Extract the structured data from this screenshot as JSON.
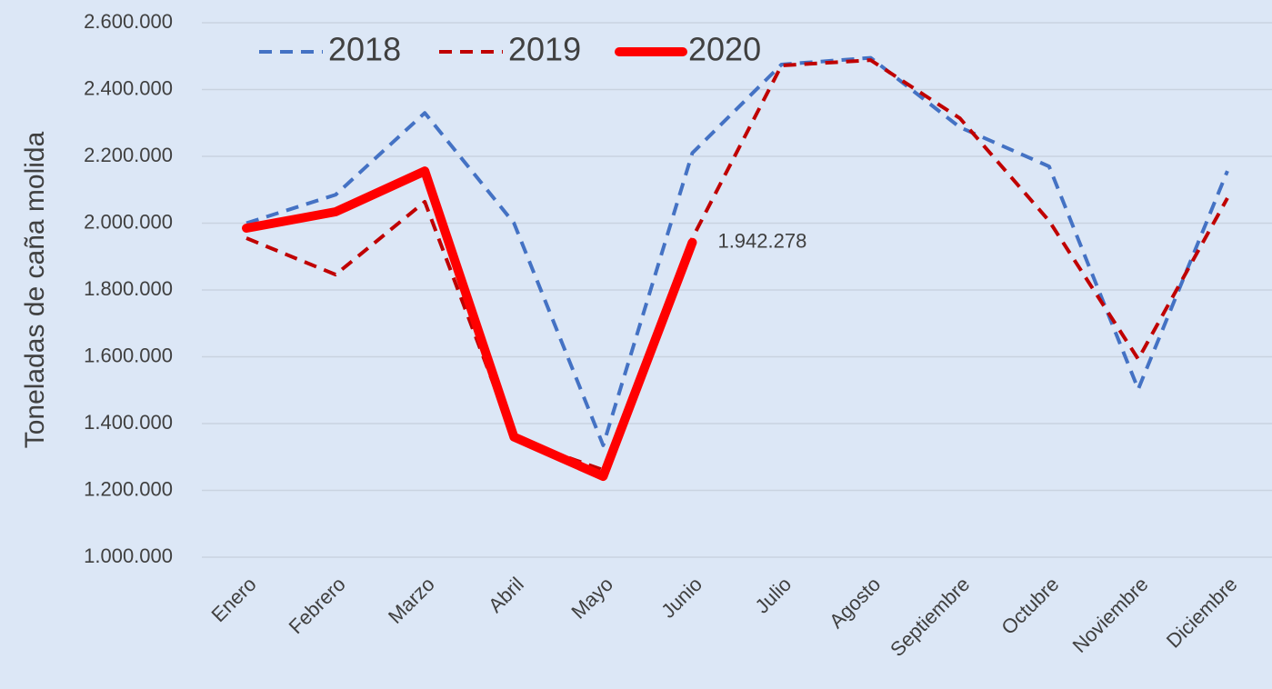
{
  "chart_data": {
    "type": "line",
    "y_axis_label": "Toneladas de caña molida",
    "categories": [
      "Enero",
      "Febrero",
      "Marzo",
      "Abril",
      "Mayo",
      "Junio",
      "Julio",
      "Agosto",
      "Septiembre",
      "Octubre",
      "Noviembre",
      "Diciembre"
    ],
    "series": [
      {
        "name": "2018",
        "color": "#4472c4",
        "dash": true,
        "width": 4,
        "values": [
          2000000,
          2085000,
          2330000,
          2000000,
          1335000,
          2210000,
          2475000,
          2495000,
          2287000,
          2170000,
          1503000,
          2156000
        ]
      },
      {
        "name": "2019",
        "color": "#c00000",
        "dash": true,
        "width": 4,
        "values": [
          1955000,
          1846000,
          2064000,
          1356000,
          1261000,
          1955000,
          2472000,
          2488000,
          2314000,
          2007000,
          1593000,
          2075000
        ]
      },
      {
        "name": "2020",
        "color": "#ff0000",
        "dash": false,
        "width": 10,
        "values": [
          1985000,
          2034000,
          2156000,
          1360000,
          1242000,
          1942278,
          null,
          null,
          null,
          null,
          null,
          null
        ],
        "value_labels": [
          null,
          null,
          null,
          null,
          null,
          "1.942.278",
          null,
          null,
          null,
          null,
          null,
          null
        ]
      }
    ],
    "ylim": [
      1000000,
      2600000
    ],
    "yticks": [
      {
        "value": 1000000,
        "label": "1.000.000"
      },
      {
        "value": 1200000,
        "label": "1.200.000"
      },
      {
        "value": 1400000,
        "label": "1.400.000"
      },
      {
        "value": 1600000,
        "label": "1.600.000"
      },
      {
        "value": 1800000,
        "label": "1.800.000"
      },
      {
        "value": 2000000,
        "label": "2.000.000"
      },
      {
        "value": 2200000,
        "label": "2.200.000"
      },
      {
        "value": 2400000,
        "label": "2.400.000"
      },
      {
        "value": 2600000,
        "label": "2.600.000"
      }
    ],
    "grid": true,
    "legend": "top"
  }
}
